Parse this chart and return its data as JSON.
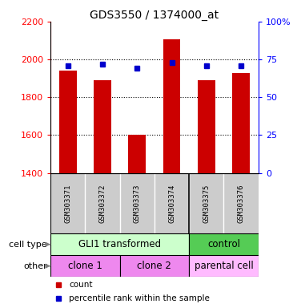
{
  "title": "GDS3550 / 1374000_at",
  "samples": [
    "GSM303371",
    "GSM303372",
    "GSM303373",
    "GSM303374",
    "GSM303375",
    "GSM303376"
  ],
  "counts": [
    1940,
    1890,
    1600,
    2105,
    1890,
    1930
  ],
  "percentile_ranks": [
    71,
    72,
    69,
    73,
    71,
    71
  ],
  "ylim_left": [
    1400,
    2200
  ],
  "ylim_right": [
    0,
    100
  ],
  "left_ticks": [
    1400,
    1600,
    1800,
    2000,
    2200
  ],
  "right_ticks": [
    0,
    25,
    50,
    75,
    100
  ],
  "left_tick_labels": [
    "1400",
    "1600",
    "1800",
    "2000",
    "2200"
  ],
  "right_tick_labels": [
    "0",
    "25",
    "50",
    "75",
    "100%"
  ],
  "bar_color": "#cc0000",
  "dot_color": "#0000cc",
  "bar_width": 0.5,
  "bar_bottom": 1400,
  "cell_type_labels": [
    "GLI1 transformed",
    "control"
  ],
  "cell_type_color_gli1": "#ccffcc",
  "cell_type_color_control": "#55cc55",
  "other_labels": [
    "clone 1",
    "clone 2",
    "parental cell"
  ],
  "other_color_clone": "#ee88ee",
  "other_color_parental": "#ffbbff",
  "label_cell_type": "cell type",
  "label_other": "other",
  "legend_count": "count",
  "legend_percentile": "percentile rank within the sample",
  "sample_bg": "#cccccc",
  "title_fontsize": 10
}
